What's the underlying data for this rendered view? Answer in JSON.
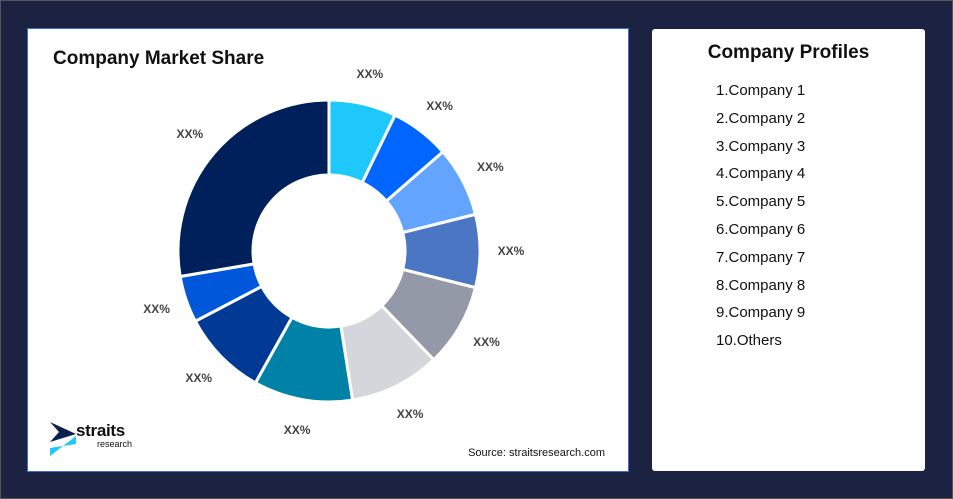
{
  "chart_data": {
    "type": "pie",
    "variant": "donut",
    "title": "Company Market Share",
    "slices": [
      {
        "label": "XX%",
        "value": 7.2,
        "color": "#1ec8fb"
      },
      {
        "label": "XX%",
        "value": 6.4,
        "color": "#0066ff"
      },
      {
        "label": "XX%",
        "value": 7.5,
        "color": "#63a4ff"
      },
      {
        "label": "XX%",
        "value": 7.8,
        "color": "#4a76c4"
      },
      {
        "label": "XX%",
        "value": 8.9,
        "color": "#9399a6"
      },
      {
        "label": "XX%",
        "value": 9.7,
        "color": "#d5d6db"
      },
      {
        "label": "XX%",
        "value": 10.6,
        "color": "#0082a8"
      },
      {
        "label": "XX%",
        "value": 9.2,
        "color": "#003a94"
      },
      {
        "label": "XX%",
        "value": 5.0,
        "color": "#0057d9"
      },
      {
        "label": "XX%",
        "value": 27.7,
        "color": "#00205c"
      }
    ],
    "source": "Source: straitsresearch.com"
  },
  "logo": {
    "name": "straits",
    "sub": "research"
  },
  "profiles": {
    "title": "Company Profiles",
    "items": [
      "1.Company 1",
      "2.Company 2",
      "3.Company 3",
      "4.Company 4",
      "5.Company 5",
      "6.Company 6",
      "7.Company 7",
      "8.Company 8",
      "9.Company 9",
      "10.Others"
    ]
  }
}
